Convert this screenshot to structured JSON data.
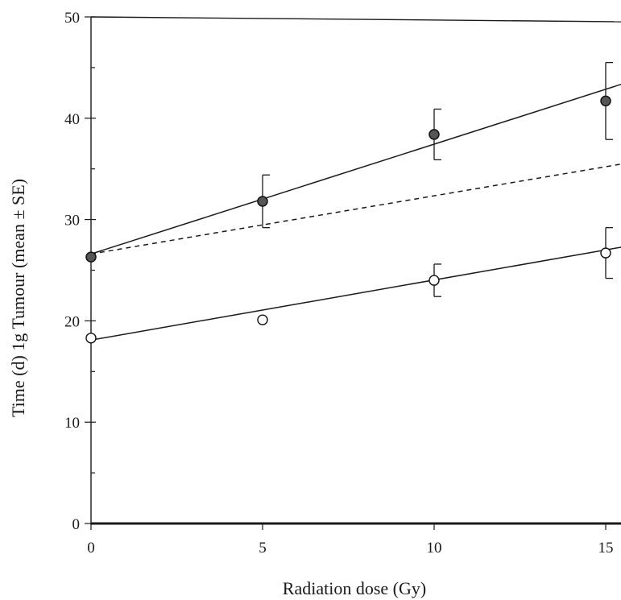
{
  "chart_data": {
    "type": "scatter",
    "title": "",
    "xlabel": "Radiation dose (Gy)",
    "ylabel": "Time (d) 1g Tumour (mean ± SE)",
    "xlim": [
      0,
      15.5
    ],
    "ylim": [
      0,
      50
    ],
    "x_ticks": [
      "0",
      "5",
      "10",
      "15"
    ],
    "y_ticks": [
      "0",
      "10",
      "20",
      "30",
      "40",
      "50"
    ],
    "grid": false,
    "legend": "none",
    "series": [
      {
        "marker": "filled-circle",
        "x": [
          0,
          5,
          10,
          15
        ],
        "y": [
          26.3,
          31.8,
          38.4,
          41.7
        ],
        "err": [
          0,
          2.6,
          2.5,
          3.8
        ]
      },
      {
        "marker": "open-circle",
        "x": [
          0,
          5,
          10,
          15
        ],
        "y": [
          18.3,
          20.1,
          24.0,
          26.7
        ],
        "err": [
          0,
          0,
          1.6,
          2.5
        ]
      }
    ],
    "fit_lines": [
      {
        "style": "solid",
        "x": [
          0,
          15.5
        ],
        "y": [
          26.6,
          43.4
        ]
      },
      {
        "style": "dashed",
        "x": [
          0,
          15.5
        ],
        "y": [
          26.6,
          35.5
        ]
      },
      {
        "style": "solid",
        "x": [
          0,
          15.5
        ],
        "y": [
          18.1,
          27.3
        ]
      }
    ]
  }
}
